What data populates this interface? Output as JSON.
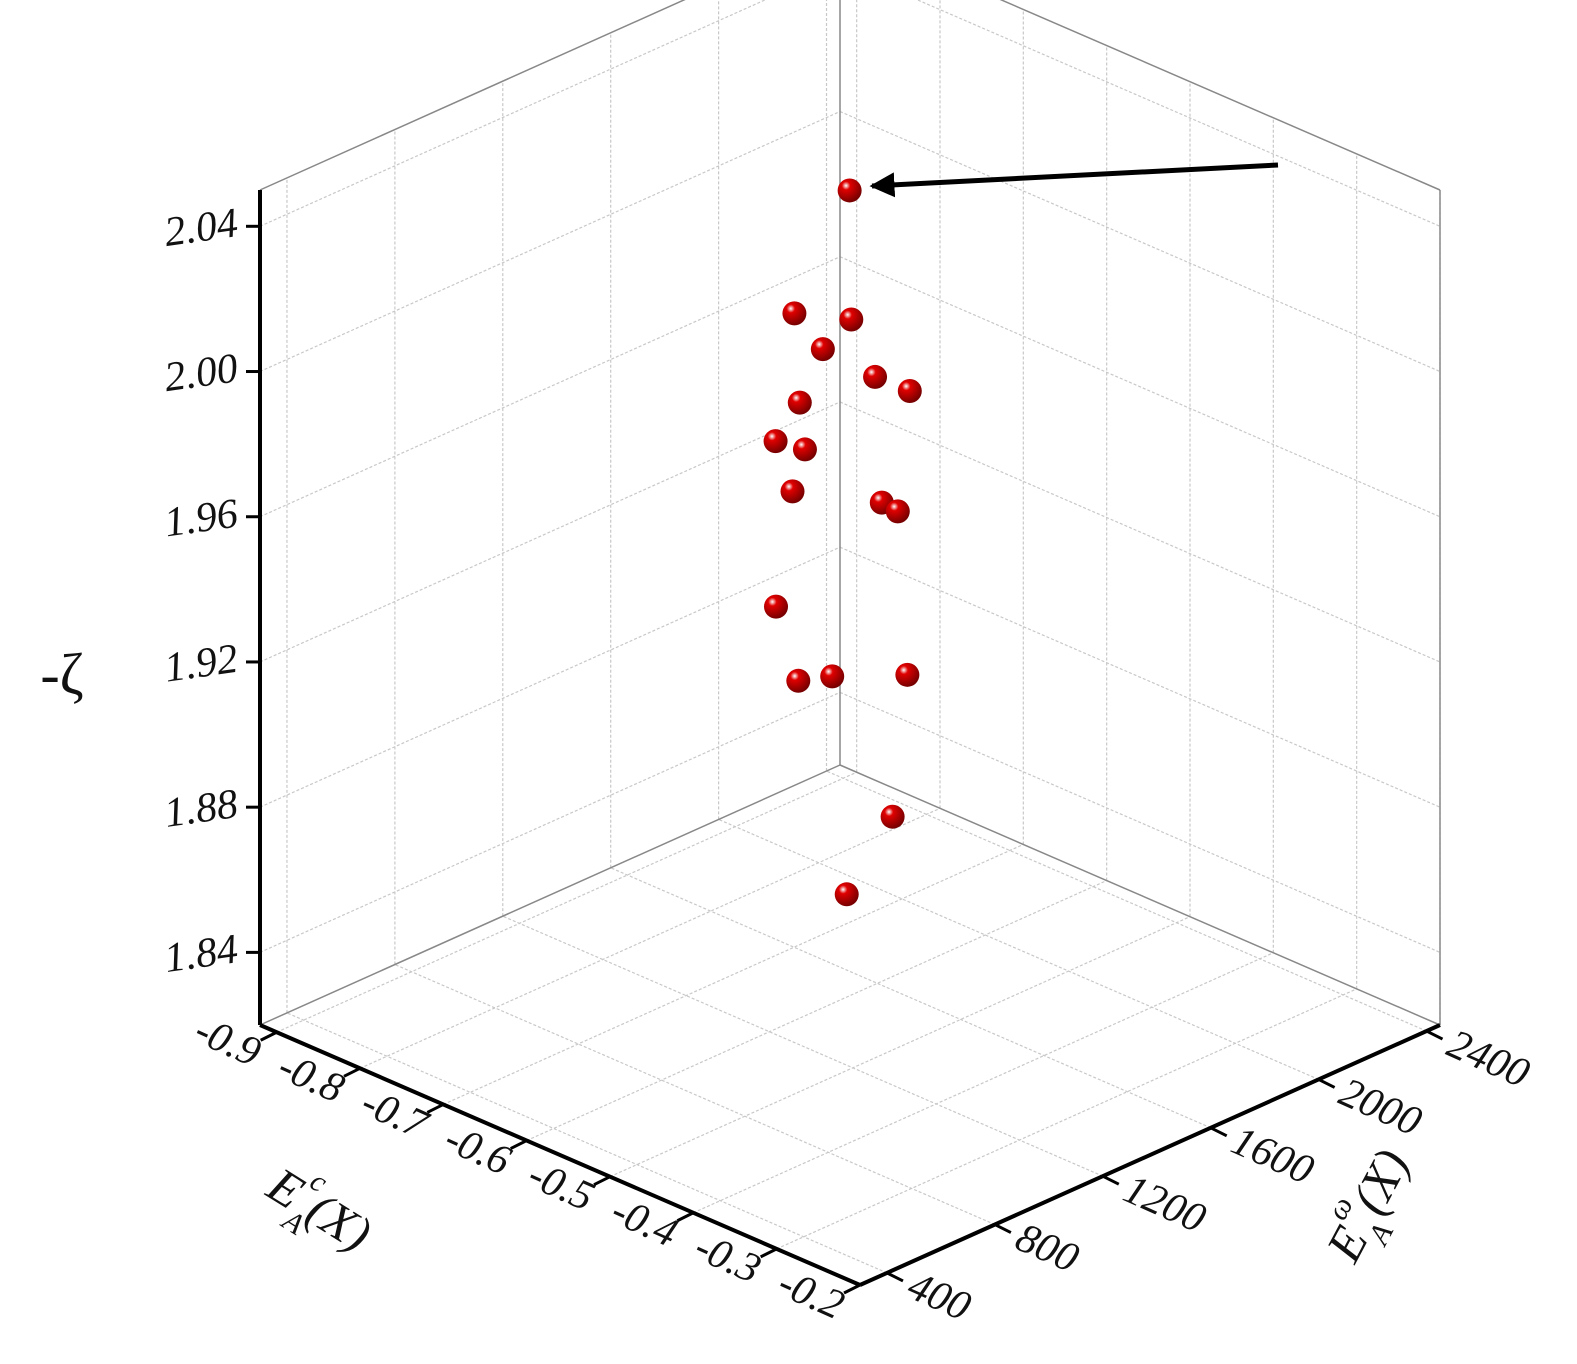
{
  "chart_data": {
    "type": "scatter3d",
    "zlabel": "-ζ",
    "xlabel": {
      "base": "E",
      "sub": "A",
      "sup": "c",
      "arg": "(X)"
    },
    "ylabel": {
      "base": "E",
      "sub": "A",
      "sup": "ω",
      "arg": "(X)"
    },
    "xlim": [
      -0.92,
      -0.2
    ],
    "xticks": [
      -0.9,
      -0.8,
      -0.7,
      -0.6,
      -0.5,
      -0.4,
      -0.3,
      -0.2
    ],
    "ylim": [
      300,
      2450
    ],
    "yticks": [
      400,
      800,
      1200,
      1600,
      2000,
      2400
    ],
    "zlim": [
      1.82,
      2.05
    ],
    "zticks": [
      1.84,
      1.88,
      1.92,
      1.96,
      {
        "value": 2.0,
        "label": "2.00"
      },
      2.04
    ],
    "grid": true,
    "series": [
      {
        "color": "#e00000",
        "x": [
          -0.609,
          -0.594,
          -0.63,
          -0.612,
          -0.651,
          -0.665,
          -0.573,
          -0.57,
          -0.605,
          -0.595,
          -0.629,
          -0.637,
          -0.552,
          -0.556,
          -0.571,
          -0.631,
          -0.605,
          -0.562
        ],
        "y": [
          1525,
          1274,
          1596,
          1435,
          1749,
          1921,
          1229,
          1130,
          1347,
          1270,
          1706,
          1790,
          1076,
          1171,
          1343,
          1807,
          1672,
          1369
        ],
        "z": [
          2.04,
          2.016,
          2.0,
          1.999,
          1.977,
          1.966,
          1.995,
          1.988,
          1.975,
          1.967,
          1.946,
          1.94,
          1.946,
          1.922,
          1.916,
          1.895,
          1.863,
          1.856
        ]
      }
    ]
  }
}
